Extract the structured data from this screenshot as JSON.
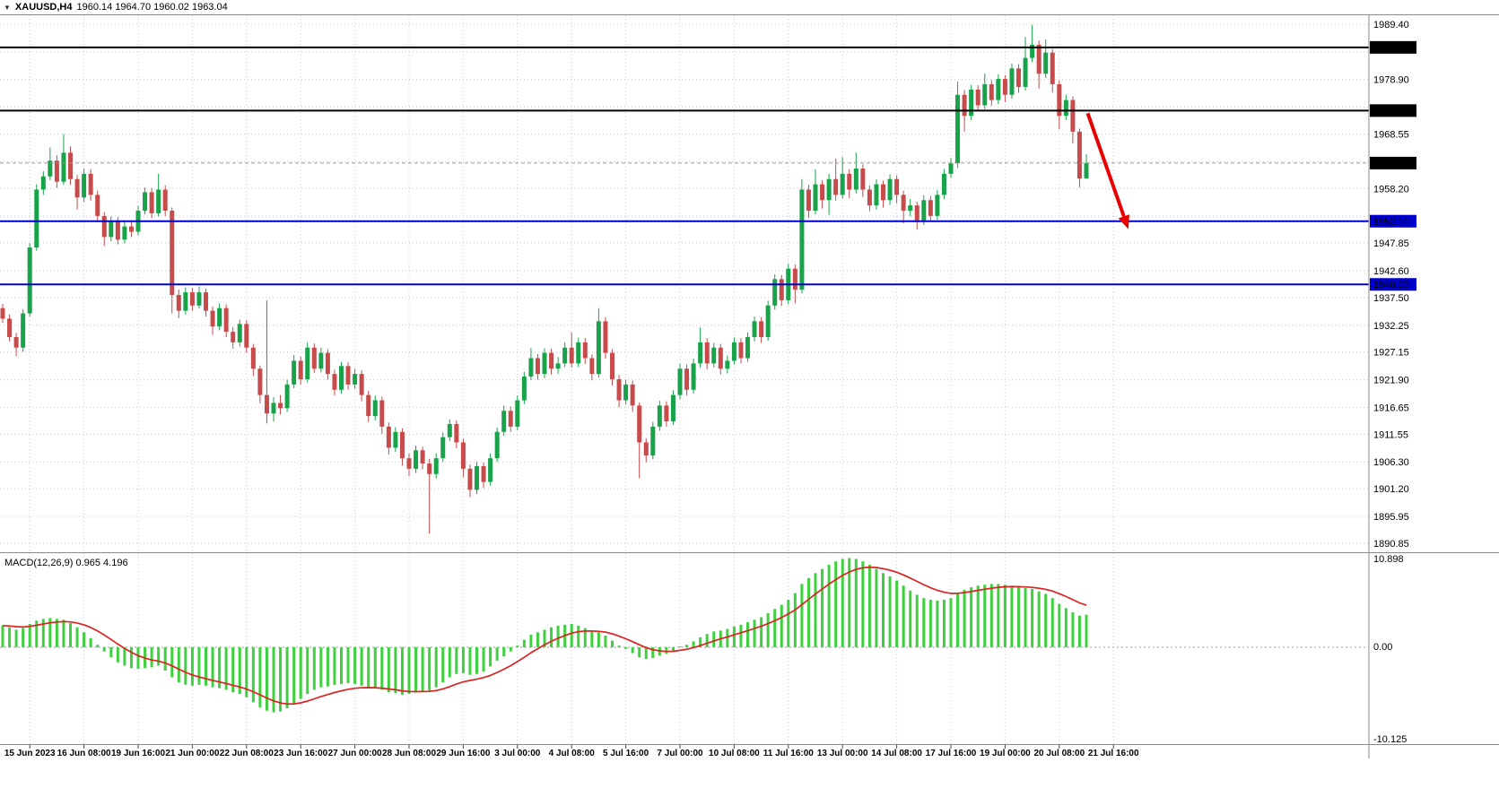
{
  "title": {
    "collapse_icon": "▼",
    "symbol": "XAUUSD,H4",
    "ohlc": "1960.14 1964.70 1960.02 1963.04"
  },
  "colors": {
    "background": "#ffffff",
    "grid": "#c9c9c9",
    "candle_up": "#18a24a",
    "candle_down": "#c84b4b",
    "macd_bar": "#3fd03f",
    "macd_signal": "#dd2222",
    "hline_black": "#000000",
    "hline_blue": "#0000cc",
    "bid_line": "#9a9a9a",
    "arrow": "#e60000",
    "separator": "#8a8a8a",
    "axis_text": "#000000"
  },
  "chart_data": {
    "type": "candlestick",
    "symbol": "XAUUSD",
    "timeframe": "H4",
    "time_labels": [
      "15 Jun 2023",
      "16 Jun 08:00",
      "19 Jun 16:00",
      "21 Jun 00:00",
      "22 Jun 08:00",
      "23 Jun 16:00",
      "27 Jun 00:00",
      "28 Jun 08:00",
      "29 Jun 16:00",
      "3 Jul 00:00",
      "4 Jul 08:00",
      "5 Jul 16:00",
      "7 Jul 00:00",
      "10 Jul 08:00",
      "11 Jul 16:00",
      "13 Jul 00:00",
      "14 Jul 08:00",
      "17 Jul 16:00",
      "19 Jul 00:00",
      "20 Jul 08:00",
      "21 Jul 16:00"
    ],
    "bars_per_label": 8,
    "ylim": [
      1890.85,
      1989.4
    ],
    "price_ticks": [
      {
        "v": 1989.4,
        "show": 1
      },
      {
        "v": 1984.15,
        "show": 0
      },
      {
        "v": 1978.9,
        "show": 1
      },
      {
        "v": 1973.7,
        "show": 0
      },
      {
        "v": 1968.55,
        "show": 1
      },
      {
        "v": 1963.3,
        "show": 0
      },
      {
        "v": 1958.2,
        "show": 1
      },
      {
        "v": 1952.95,
        "show": 0
      },
      {
        "v": 1947.85,
        "show": 1
      },
      {
        "v": 1942.6,
        "show": 1
      },
      {
        "v": 1937.5,
        "show": 1
      },
      {
        "v": 1932.25,
        "show": 1
      },
      {
        "v": 1927.15,
        "show": 1
      },
      {
        "v": 1921.9,
        "show": 1
      },
      {
        "v": 1916.65,
        "show": 1
      },
      {
        "v": 1911.55,
        "show": 1
      },
      {
        "v": 1906.3,
        "show": 1
      },
      {
        "v": 1901.2,
        "show": 1
      },
      {
        "v": 1895.95,
        "show": 1
      },
      {
        "v": 1890.85,
        "show": 1
      }
    ],
    "hlines": [
      {
        "price": 1985.0,
        "label": "1985.00",
        "color": "#000000",
        "width": 2
      },
      {
        "price": 1973.0,
        "label": "1973.00",
        "color": "#000000",
        "width": 2
      },
      {
        "price": 1952.0,
        "label": "1952.00",
        "color": "#0000cc",
        "width": 2
      },
      {
        "price": 1940.0,
        "label": "1940.00",
        "color": "#0000cc",
        "width": 2
      }
    ],
    "bid": {
      "price": 1963.04,
      "label": "1963.04",
      "label_bg": "#000000"
    },
    "candles": [
      [
        1935.5,
        1936.3,
        1932.7,
        1933.5
      ],
      [
        1933.5,
        1934.3,
        1929.2,
        1930.0
      ],
      [
        1930.0,
        1930.8,
        1926.4,
        1928.0
      ],
      [
        1928.0,
        1935.3,
        1927.2,
        1934.5
      ],
      [
        1934.5,
        1947.8,
        1933.9,
        1947.0
      ],
      [
        1947.0,
        1959.0,
        1946.4,
        1958.0
      ],
      [
        1958.0,
        1961.5,
        1957.0,
        1960.5
      ],
      [
        1960.5,
        1966.0,
        1959.8,
        1963.5
      ],
      [
        1963.5,
        1964.5,
        1958.3,
        1959.5
      ],
      [
        1959.5,
        1968.5,
        1958.9,
        1965.0
      ],
      [
        1965.0,
        1966.2,
        1958.9,
        1960.0
      ],
      [
        1960.0,
        1960.8,
        1954.2,
        1956.5
      ],
      [
        1956.5,
        1962.0,
        1955.7,
        1961.0
      ],
      [
        1961.0,
        1961.9,
        1955.9,
        1957.0
      ],
      [
        1957.0,
        1957.8,
        1951.8,
        1953.0
      ],
      [
        1953.0,
        1953.7,
        1947.3,
        1949.0
      ],
      [
        1949.0,
        1952.9,
        1948.2,
        1952.0
      ],
      [
        1952.0,
        1952.8,
        1947.6,
        1948.5
      ],
      [
        1948.5,
        1951.9,
        1947.8,
        1951.0
      ],
      [
        1951.0,
        1952.0,
        1949.0,
        1950.0
      ],
      [
        1950.0,
        1954.9,
        1949.3,
        1954.0
      ],
      [
        1954.0,
        1958.4,
        1953.3,
        1957.5
      ],
      [
        1957.5,
        1958.3,
        1952.6,
        1953.5
      ],
      [
        1953.5,
        1961.0,
        1952.9,
        1958.0
      ],
      [
        1958.0,
        1958.8,
        1953.0,
        1954.0
      ],
      [
        1954.0,
        1954.6,
        1934.5,
        1938.0
      ],
      [
        1938.0,
        1939.0,
        1933.6,
        1935.0
      ],
      [
        1935.0,
        1939.4,
        1934.3,
        1938.5
      ],
      [
        1938.5,
        1939.3,
        1935.0,
        1936.0
      ],
      [
        1936.0,
        1939.6,
        1935.4,
        1938.5
      ],
      [
        1938.5,
        1939.2,
        1933.9,
        1935.0
      ],
      [
        1935.0,
        1935.8,
        1930.4,
        1932.0
      ],
      [
        1932.0,
        1936.4,
        1931.3,
        1935.5
      ],
      [
        1935.5,
        1936.2,
        1930.0,
        1931.0
      ],
      [
        1931.0,
        1931.9,
        1927.8,
        1929.0
      ],
      [
        1929.0,
        1933.3,
        1928.2,
        1932.5
      ],
      [
        1932.5,
        1933.2,
        1927.0,
        1928.0
      ],
      [
        1928.0,
        1928.7,
        1922.6,
        1924.0
      ],
      [
        1924.0,
        1924.6,
        1917.4,
        1919.0
      ],
      [
        1919.0,
        1937.0,
        1913.6,
        1915.5
      ],
      [
        1915.5,
        1918.6,
        1914.0,
        1917.5
      ],
      [
        1917.5,
        1919.0,
        1915.3,
        1916.5
      ],
      [
        1916.5,
        1921.9,
        1915.8,
        1921.0
      ],
      [
        1921.0,
        1926.6,
        1920.3,
        1925.5
      ],
      [
        1925.5,
        1926.3,
        1921.0,
        1922.0
      ],
      [
        1922.0,
        1929.0,
        1921.4,
        1928.0
      ],
      [
        1928.0,
        1928.8,
        1923.2,
        1924.0
      ],
      [
        1924.0,
        1928.0,
        1923.3,
        1927.0
      ],
      [
        1927.0,
        1927.7,
        1921.9,
        1923.0
      ],
      [
        1923.0,
        1923.8,
        1918.9,
        1920.0
      ],
      [
        1920.0,
        1925.3,
        1919.3,
        1924.5
      ],
      [
        1924.5,
        1925.2,
        1920.0,
        1921.0
      ],
      [
        1921.0,
        1924.0,
        1920.2,
        1923.0
      ],
      [
        1923.0,
        1923.7,
        1917.8,
        1919.0
      ],
      [
        1919.0,
        1919.8,
        1913.9,
        1915.0
      ],
      [
        1915.0,
        1918.9,
        1914.2,
        1918.0
      ],
      [
        1918.0,
        1918.7,
        1911.6,
        1913.0
      ],
      [
        1913.0,
        1913.8,
        1907.7,
        1909.0
      ],
      [
        1909.0,
        1912.9,
        1908.2,
        1912.0
      ],
      [
        1912.0,
        1912.7,
        1905.6,
        1907.0
      ],
      [
        1907.0,
        1907.9,
        1903.6,
        1905.0
      ],
      [
        1905.0,
        1909.4,
        1904.2,
        1908.5
      ],
      [
        1908.5,
        1909.2,
        1904.9,
        1906.0
      ],
      [
        1906.0,
        1906.9,
        1892.7,
        1904.0
      ],
      [
        1904.0,
        1907.9,
        1903.2,
        1907.0
      ],
      [
        1907.0,
        1911.9,
        1906.3,
        1911.0
      ],
      [
        1911.0,
        1914.4,
        1910.2,
        1913.5
      ],
      [
        1913.5,
        1914.2,
        1908.9,
        1910.0
      ],
      [
        1910.0,
        1910.7,
        1903.4,
        1905.0
      ],
      [
        1905.0,
        1905.8,
        1899.6,
        1901.0
      ],
      [
        1901.0,
        1906.3,
        1900.2,
        1905.5
      ],
      [
        1905.5,
        1906.2,
        1901.3,
        1902.5
      ],
      [
        1902.5,
        1907.9,
        1901.8,
        1907.0
      ],
      [
        1907.0,
        1912.8,
        1906.3,
        1912.0
      ],
      [
        1912.0,
        1917.0,
        1911.2,
        1916.0
      ],
      [
        1916.0,
        1916.8,
        1912.0,
        1913.0
      ],
      [
        1913.0,
        1918.9,
        1912.3,
        1918.0
      ],
      [
        1918.0,
        1923.4,
        1917.3,
        1922.5
      ],
      [
        1922.5,
        1927.9,
        1921.8,
        1926.0
      ],
      [
        1926.0,
        1926.8,
        1921.9,
        1923.0
      ],
      [
        1923.0,
        1927.9,
        1922.2,
        1927.0
      ],
      [
        1927.0,
        1927.8,
        1922.9,
        1924.0
      ],
      [
        1924.0,
        1926.2,
        1923.0,
        1925.0
      ],
      [
        1925.0,
        1929.0,
        1924.3,
        1928.0
      ],
      [
        1928.0,
        1930.9,
        1924.2,
        1925.0
      ],
      [
        1925.0,
        1929.9,
        1924.3,
        1929.0
      ],
      [
        1929.0,
        1929.8,
        1924.9,
        1926.0
      ],
      [
        1926.0,
        1926.7,
        1921.8,
        1923.0
      ],
      [
        1923.0,
        1935.5,
        1922.3,
        1933.0
      ],
      [
        1933.0,
        1933.8,
        1925.9,
        1927.0
      ],
      [
        1927.0,
        1927.7,
        1920.8,
        1922.0
      ],
      [
        1922.0,
        1922.8,
        1916.7,
        1918.0
      ],
      [
        1918.0,
        1921.9,
        1917.2,
        1921.0
      ],
      [
        1921.0,
        1921.7,
        1915.8,
        1917.0
      ],
      [
        1917.0,
        1917.6,
        1903.2,
        1910.0
      ],
      [
        1910.0,
        1910.8,
        1906.2,
        1907.5
      ],
      [
        1907.5,
        1913.9,
        1906.8,
        1913.0
      ],
      [
        1913.0,
        1917.9,
        1912.2,
        1917.0
      ],
      [
        1917.0,
        1917.8,
        1913.0,
        1914.0
      ],
      [
        1914.0,
        1919.9,
        1913.3,
        1919.0
      ],
      [
        1919.0,
        1924.9,
        1918.2,
        1924.0
      ],
      [
        1924.0,
        1924.8,
        1918.9,
        1920.0
      ],
      [
        1920.0,
        1925.9,
        1919.3,
        1925.0
      ],
      [
        1925.0,
        1931.8,
        1924.2,
        1929.0
      ],
      [
        1929.0,
        1929.8,
        1923.9,
        1925.0
      ],
      [
        1925.0,
        1928.9,
        1924.2,
        1928.0
      ],
      [
        1928.0,
        1928.7,
        1922.9,
        1924.0
      ],
      [
        1924.0,
        1926.5,
        1923.1,
        1925.5
      ],
      [
        1925.5,
        1929.9,
        1924.8,
        1929.0
      ],
      [
        1929.0,
        1929.8,
        1925.0,
        1926.0
      ],
      [
        1926.0,
        1930.9,
        1925.3,
        1930.0
      ],
      [
        1930.0,
        1933.9,
        1929.2,
        1933.0
      ],
      [
        1933.0,
        1933.8,
        1928.9,
        1930.0
      ],
      [
        1930.0,
        1936.9,
        1929.3,
        1936.0
      ],
      [
        1936.0,
        1941.9,
        1935.2,
        1941.0
      ],
      [
        1941.0,
        1941.8,
        1935.9,
        1937.0
      ],
      [
        1937.0,
        1943.9,
        1936.2,
        1943.0
      ],
      [
        1943.0,
        1943.8,
        1936.4,
        1939.0
      ],
      [
        1939.0,
        1960.0,
        1938.3,
        1958.0
      ],
      [
        1958.0,
        1958.9,
        1952.6,
        1954.0
      ],
      [
        1954.0,
        1961.9,
        1953.3,
        1959.0
      ],
      [
        1959.0,
        1959.8,
        1954.4,
        1956.0
      ],
      [
        1956.0,
        1961.0,
        1953.2,
        1960.0
      ],
      [
        1960.0,
        1963.9,
        1955.9,
        1957.0
      ],
      [
        1957.0,
        1964.2,
        1956.3,
        1961.0
      ],
      [
        1961.0,
        1961.9,
        1956.4,
        1958.0
      ],
      [
        1958.0,
        1965.0,
        1957.3,
        1962.0
      ],
      [
        1962.0,
        1962.8,
        1956.6,
        1958.0
      ],
      [
        1958.0,
        1958.8,
        1953.9,
        1955.0
      ],
      [
        1955.0,
        1959.9,
        1954.2,
        1959.0
      ],
      [
        1959.0,
        1959.7,
        1954.6,
        1956.0
      ],
      [
        1956.0,
        1960.9,
        1955.1,
        1960.0
      ],
      [
        1960.0,
        1960.7,
        1955.4,
        1957.0
      ],
      [
        1957.0,
        1957.8,
        1951.6,
        1954.0
      ],
      [
        1954.0,
        1956.2,
        1952.9,
        1955.0
      ],
      [
        1955.0,
        1955.7,
        1950.4,
        1952.0
      ],
      [
        1952.0,
        1956.9,
        1951.3,
        1956.0
      ],
      [
        1956.0,
        1956.8,
        1951.9,
        1953.0
      ],
      [
        1953.0,
        1957.9,
        1952.3,
        1957.0
      ],
      [
        1957.0,
        1961.9,
        1956.2,
        1961.0
      ],
      [
        1961.0,
        1964.0,
        1960.2,
        1963.0
      ],
      [
        1963.0,
        1978.5,
        1962.1,
        1976.0
      ],
      [
        1976.0,
        1976.9,
        1969.0,
        1972.0
      ],
      [
        1972.0,
        1977.9,
        1971.2,
        1977.0
      ],
      [
        1977.0,
        1977.8,
        1972.9,
        1974.0
      ],
      [
        1974.0,
        1980.0,
        1973.3,
        1978.0
      ],
      [
        1978.0,
        1978.8,
        1973.9,
        1975.0
      ],
      [
        1975.0,
        1979.9,
        1974.2,
        1979.0
      ],
      [
        1979.0,
        1979.7,
        1974.6,
        1976.0
      ],
      [
        1976.0,
        1981.9,
        1975.3,
        1981.0
      ],
      [
        1981.0,
        1981.8,
        1976.4,
        1977.5
      ],
      [
        1977.5,
        1987.0,
        1976.8,
        1983.0
      ],
      [
        1983.0,
        1989.3,
        1982.2,
        1985.5
      ],
      [
        1985.5,
        1986.3,
        1977.2,
        1980.0
      ],
      [
        1980.0,
        1986.5,
        1979.2,
        1984.0
      ],
      [
        1984.0,
        1984.7,
        1976.4,
        1978.0
      ],
      [
        1978.0,
        1978.7,
        1969.5,
        1972.0
      ],
      [
        1972.0,
        1976.0,
        1971.2,
        1975.0
      ],
      [
        1975.0,
        1975.7,
        1966.8,
        1969.0
      ],
      [
        1969.0,
        1969.6,
        1958.4,
        1960.1
      ],
      [
        1960.14,
        1964.7,
        1960.02,
        1963.04
      ]
    ],
    "macd": {
      "label_name": "MACD(12,26,9)",
      "label_values": "0.965 4.196",
      "axis_labels": [
        "10.898",
        "0.00",
        "-10.125"
      ],
      "signal_period": 9,
      "values": [
        2.6,
        2.4,
        2.1,
        2.3,
        2.8,
        3.2,
        3.4,
        3.5,
        3.4,
        3.3,
        2.9,
        2.4,
        1.8,
        1.1,
        0.3,
        -0.5,
        -1.2,
        -1.8,
        -2.2,
        -2.5,
        -2.6,
        -2.5,
        -2.4,
        -2.2,
        -2.8,
        -3.6,
        -4.2,
        -4.5,
        -4.6,
        -4.5,
        -4.6,
        -4.8,
        -4.9,
        -5.1,
        -5.4,
        -5.6,
        -6.0,
        -6.6,
        -7.2,
        -7.6,
        -7.8,
        -7.7,
        -7.3,
        -6.7,
        -6.2,
        -5.6,
        -5.1,
        -4.8,
        -4.7,
        -4.5,
        -4.4,
        -4.3,
        -4.4,
        -4.6,
        -4.8,
        -4.9,
        -5.1,
        -5.4,
        -5.5,
        -5.7,
        -5.6,
        -5.4,
        -5.3,
        -5.2,
        -4.8,
        -4.2,
        -3.6,
        -3.2,
        -3.1,
        -3.3,
        -3.2,
        -2.9,
        -2.3,
        -1.6,
        -1.1,
        -0.5,
        0.2,
        0.9,
        1.5,
        1.8,
        2.1,
        2.4,
        2.6,
        2.7,
        2.8,
        2.6,
        2.3,
        1.9,
        1.8,
        1.4,
        0.8,
        0.2,
        -0.2,
        -0.7,
        -1.2,
        -1.4,
        -1.3,
        -1.0,
        -0.8,
        -0.4,
        0.1,
        0.3,
        0.7,
        1.2,
        1.6,
        1.9,
        2.0,
        2.2,
        2.5,
        2.7,
        3.0,
        3.3,
        3.6,
        4.1,
        4.6,
        5.1,
        5.7,
        6.5,
        7.6,
        8.3,
        8.9,
        9.4,
        9.9,
        10.3,
        10.6,
        10.7,
        10.6,
        10.3,
        9.9,
        9.4,
        8.9,
        8.5,
        8.0,
        7.4,
        6.8,
        6.3,
        5.9,
        5.7,
        5.6,
        5.7,
        5.9,
        6.5,
        6.9,
        7.2,
        7.4,
        7.5,
        7.6,
        7.6,
        7.5,
        7.4,
        7.2,
        7.1,
        7.0,
        6.7,
        6.4,
        5.9,
        5.2,
        4.7,
        4.2,
        3.8,
        3.9
      ]
    },
    "annotations": [
      {
        "type": "arrow",
        "color": "#e60000",
        "width": 4,
        "from_bar": 160.2,
        "from_price": 1972.5,
        "to_bar": 166.2,
        "to_price": 1950.5
      }
    ]
  }
}
